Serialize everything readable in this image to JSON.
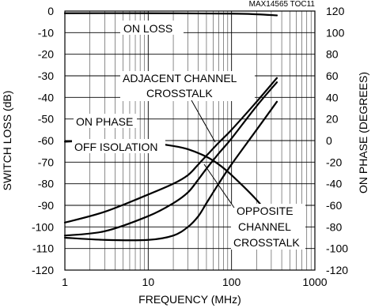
{
  "chart_data": {
    "type": "line",
    "chart_id": "MAX14565 TOC11",
    "xlabel": "FREQUENCY (MHz)",
    "ylabel": "SWITCH LOSS (dB)",
    "y2label": "ON PHASE (DEGREES)",
    "xscale": "log",
    "xlim": [
      1,
      1000
    ],
    "ylim": [
      -120,
      0
    ],
    "y2lim": [
      -120,
      120
    ],
    "grid": true,
    "x_ticks": [
      "1",
      "10",
      "100",
      "1000"
    ],
    "y_ticks": [
      "0",
      "-10",
      "-20",
      "-30",
      "-40",
      "-50",
      "-60",
      "-70",
      "-80",
      "-90",
      "-100",
      "-110",
      "-120"
    ],
    "y2_ticks": [
      "120",
      "100",
      "80",
      "60",
      "40",
      "20",
      "0",
      "-20",
      "-40",
      "-60",
      "-80",
      "-100",
      "-120"
    ],
    "annotations": {
      "on_loss": "ON LOSS",
      "adjacent_1": "ADJACENT CHANNEL",
      "adjacent_2": "CROSSTALK",
      "on_phase": "ON PHASE",
      "off_isolation": "OFF ISOLATION",
      "opposite_1": "OPPOSITE",
      "opposite_2": "CHANNEL",
      "opposite_3": "CROSSTALK"
    },
    "series": [
      {
        "axis": "left",
        "x": [
          1,
          10,
          100,
          200,
          350
        ],
        "y": [
          -1,
          -1,
          -1.2,
          -1.5,
          -2
        ]
      },
      {
        "axis": "left",
        "x": [
          1,
          3,
          10,
          20,
          30,
          40,
          50,
          70,
          100,
          200,
          350
        ],
        "y": [
          -105,
          -106,
          -106,
          -104,
          -100,
          -95,
          -89,
          -80,
          -71,
          -55,
          -42
        ]
      },
      {
        "axis": "right",
        "x": [
          1,
          3,
          10,
          20,
          30,
          50,
          70,
          100,
          200,
          350
        ],
        "y": [
          -1,
          0,
          -2,
          -5,
          -8,
          -15,
          -22,
          -32,
          -55,
          -78
        ]
      },
      {
        "axis": "left",
        "x": [
          1,
          3,
          10,
          20,
          30,
          40,
          50,
          70,
          100,
          200,
          350
        ],
        "y": [
          -98,
          -93,
          -85,
          -80,
          -76,
          -71,
          -67,
          -61,
          -55,
          -42,
          -31
        ]
      },
      {
        "axis": "left",
        "x": [
          1,
          3,
          10,
          20,
          30,
          40,
          50,
          70,
          100,
          200,
          350
        ],
        "y": [
          -104,
          -102,
          -95,
          -89,
          -84,
          -78,
          -73,
          -66,
          -59,
          -44,
          -33
        ]
      }
    ]
  }
}
